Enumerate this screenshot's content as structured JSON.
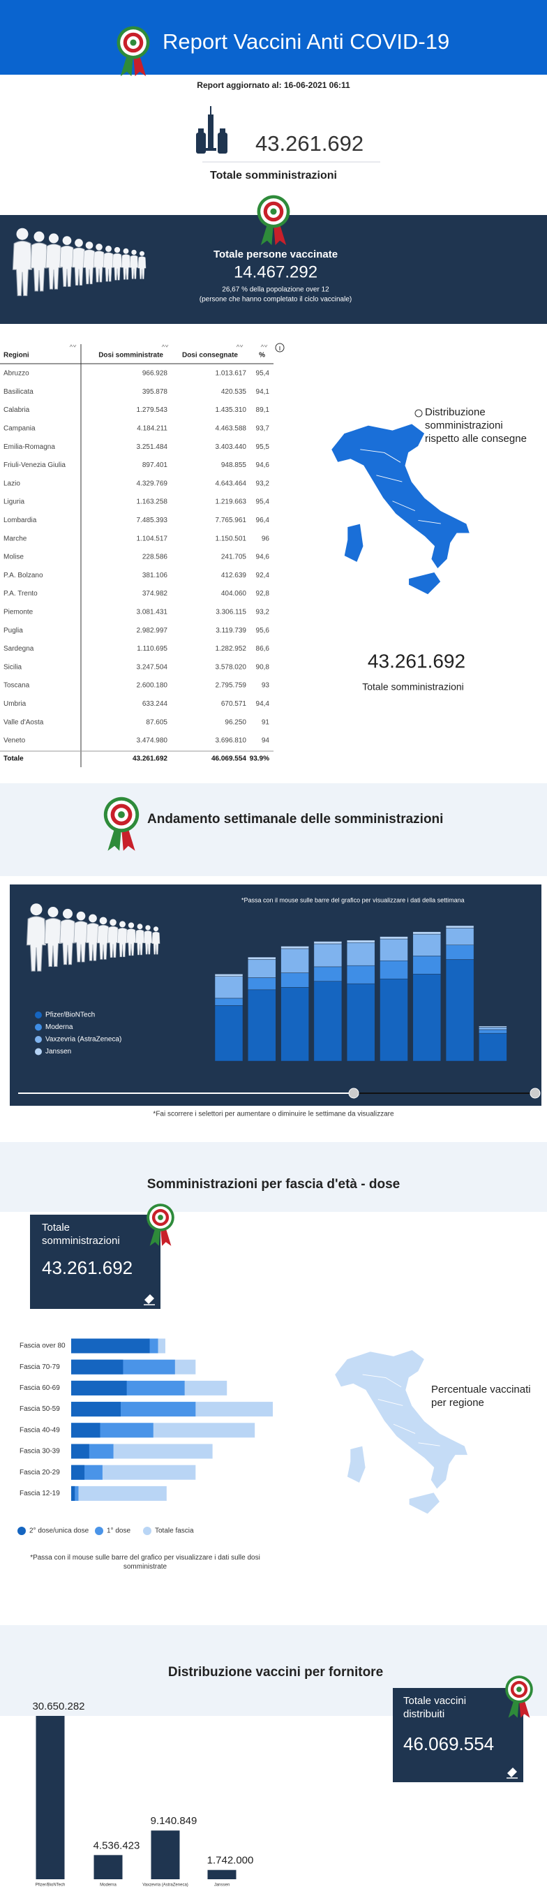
{
  "header": {
    "title": "Report Vaccini Anti COVID-19",
    "updated": "Report aggiornato al: 16-06-2021 06:11"
  },
  "summary": {
    "total_doses": "43.261.692",
    "total_doses_label": "Totale somministrazioni"
  },
  "vaccinated": {
    "label": "Totale persone vaccinate",
    "value": "14.467.292",
    "share": "26,67 % della popolazione over 12",
    "note": "(persone che hanno completato il ciclo vaccinale)"
  },
  "table": {
    "columns": [
      "Regioni",
      "Dosi somministrate",
      "Dosi consegnate",
      "%"
    ],
    "rows": [
      [
        "Abruzzo",
        "966.928",
        "1.013.617",
        "95,4"
      ],
      [
        "Basilicata",
        "395.878",
        "420.535",
        "94,1"
      ],
      [
        "Calabria",
        "1.279.543",
        "1.435.310",
        "89,1"
      ],
      [
        "Campania",
        "4.184.211",
        "4.463.588",
        "93,7"
      ],
      [
        "Emilia-Romagna",
        "3.251.484",
        "3.403.440",
        "95,5"
      ],
      [
        "Friuli-Venezia Giulia",
        "897.401",
        "948.855",
        "94,6"
      ],
      [
        "Lazio",
        "4.329.769",
        "4.643.464",
        "93,2"
      ],
      [
        "Liguria",
        "1.163.258",
        "1.219.663",
        "95,4"
      ],
      [
        "Lombardia",
        "7.485.393",
        "7.765.961",
        "96,4"
      ],
      [
        "Marche",
        "1.104.517",
        "1.150.501",
        "96"
      ],
      [
        "Molise",
        "228.586",
        "241.705",
        "94,6"
      ],
      [
        "P.A. Bolzano",
        "381.106",
        "412.639",
        "92,4"
      ],
      [
        "P.A. Trento",
        "374.982",
        "404.060",
        "92,8"
      ],
      [
        "Piemonte",
        "3.081.431",
        "3.306.115",
        "93,2"
      ],
      [
        "Puglia",
        "2.982.997",
        "3.119.739",
        "95,6"
      ],
      [
        "Sardegna",
        "1.110.695",
        "1.282.952",
        "86,6"
      ],
      [
        "Sicilia",
        "3.247.504",
        "3.578.020",
        "90,8"
      ],
      [
        "Toscana",
        "2.600.180",
        "2.795.759",
        "93"
      ],
      [
        "Umbria",
        "633.244",
        "670.571",
        "94,4"
      ],
      [
        "Valle d'Aosta",
        "87.605",
        "96.250",
        "91"
      ],
      [
        "Veneto",
        "3.474.980",
        "3.696.810",
        "94"
      ]
    ],
    "total": [
      "Totale",
      "43.261.692",
      "46.069.554",
      "93.9%"
    ]
  },
  "map_regions": {
    "caption": "Distribuzione somministrazioni rispetto alle consegne",
    "total": "43.261.692",
    "total_label": "Totale somministrazioni"
  },
  "weekly_section": {
    "title": "Andamento settimanale delle somministrazioni",
    "note_below": "*Fai scorrere i selettori per aumentare o diminuire le settimane da visualizzare"
  },
  "age_section": {
    "title": "Somministrazioni per fascia d'età - dose",
    "box_label": "Totale somministrazioni",
    "box_value": "43.261.692",
    "map_caption": "Percentuale vaccinati per regione"
  },
  "supplier_section": {
    "title": "Distribuzione vaccini per fornitore",
    "box_label": "Totale vaccini distribuiti",
    "box_value": "46.069.554"
  },
  "chart_data": [
    {
      "type": "bar",
      "stacked": true,
      "note": "*Passa con il mouse sulle barre del grafico per visualizzare i dati della settimana",
      "categories": [
        null,
        null,
        null,
        null,
        null,
        null,
        null,
        null,
        null
      ],
      "series": [
        {
          "name": "Pfizer/BioNTech",
          "color": "#1565c0",
          "values": [
            1380000,
            1770000,
            1830000,
            1980000,
            1920000,
            2040000,
            2160000,
            2520000,
            690000
          ]
        },
        {
          "name": "Moderna",
          "color": "#3f8ee6",
          "values": [
            180000,
            300000,
            360000,
            360000,
            450000,
            450000,
            450000,
            360000,
            90000
          ]
        },
        {
          "name": "Vaxzevria (AstraZeneca)",
          "color": "#7fb3ee",
          "values": [
            540000,
            450000,
            600000,
            570000,
            570000,
            540000,
            540000,
            420000,
            60000
          ]
        },
        {
          "name": "Janssen",
          "color": "#b5d3f5",
          "values": [
            60000,
            60000,
            60000,
            60000,
            60000,
            60000,
            60000,
            60000,
            30000
          ]
        }
      ]
    },
    {
      "type": "bar",
      "orientation": "horizontal",
      "overlay": true,
      "note": "*Passa con il mouse sulle barre del grafico per visualizzare i dati sulle dosi somministrate",
      "categories": [
        "Fascia over 80",
        "Fascia 70-79",
        "Fascia 60-69",
        "Fascia 50-59",
        "Fascia 40-49",
        "Fascia 30-39",
        "Fascia 20-29",
        "Fascia 12-19"
      ],
      "series": [
        {
          "name": "2° dose/unica dose",
          "color": "#1565c0",
          "values": [
            3660000,
            2420000,
            2590000,
            2310000,
            1350000,
            840000,
            620000,
            170000
          ]
        },
        {
          "name": "1° dose",
          "color": "#4a94e8",
          "values": [
            4050000,
            4840000,
            5290000,
            5800000,
            3830000,
            1970000,
            1460000,
            340000
          ]
        },
        {
          "name": "Totale fascia",
          "color": "#b9d5f5",
          "values": [
            4390000,
            5800000,
            7260000,
            9400000,
            8560000,
            6590000,
            5800000,
            4450000
          ]
        }
      ]
    },
    {
      "type": "bar",
      "categories": [
        "Pfizer/BioNTech",
        "Moderna",
        "Vaxzevria (AstraZeneca)",
        "Janssen"
      ],
      "values": [
        30650282,
        4536423,
        9140849,
        1742000
      ],
      "value_labels": [
        "30.650.282",
        "4.536.423",
        "9.140.849",
        "1.742.000"
      ],
      "color": "#1f3550"
    }
  ]
}
